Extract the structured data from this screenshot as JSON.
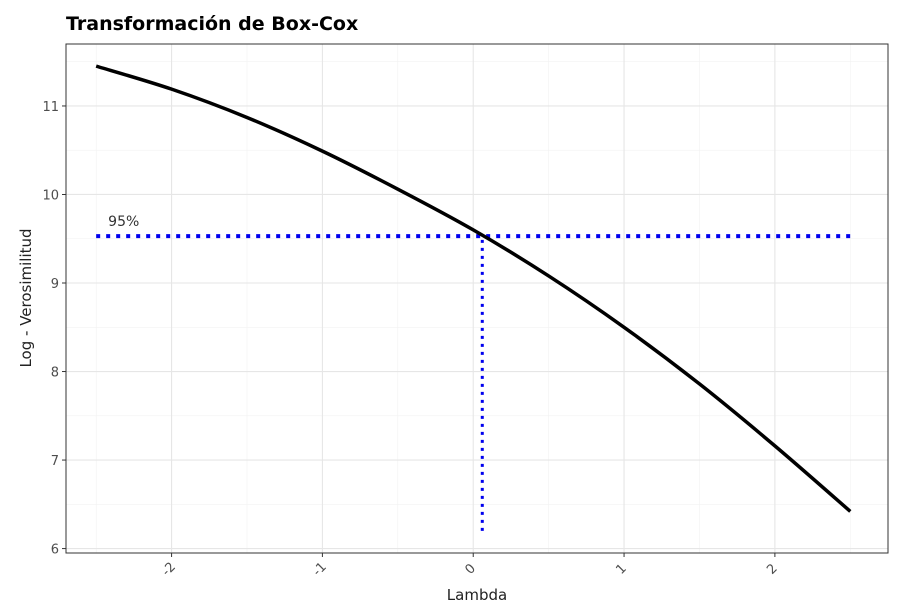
{
  "chart_data": {
    "type": "line",
    "title": "Transformación de Box-Cox",
    "xlabel": "Lambda",
    "ylabel": "Log - Verosimilitud",
    "xlim": [
      -2.7,
      2.75
    ],
    "ylim": [
      5.95,
      11.7
    ],
    "x_ticks": [
      -2,
      -1,
      0,
      1,
      2
    ],
    "x_tick_labels": [
      "-2",
      "-1",
      "0",
      "1",
      "2"
    ],
    "y_ticks": [
      6,
      7,
      8,
      9,
      10,
      11
    ],
    "y_tick_labels": [
      "6",
      "7",
      "8",
      "9",
      "10",
      "11"
    ],
    "grid": true,
    "series": [
      {
        "color": "#000000",
        "x": [
          -2.5,
          -2.0,
          -1.5,
          -1.0,
          -0.5,
          0.0,
          0.5,
          1.0,
          1.5,
          2.0,
          2.5
        ],
        "y": [
          11.45,
          11.19,
          10.87,
          10.49,
          10.06,
          9.6,
          9.08,
          8.5,
          7.86,
          7.16,
          6.42
        ]
      }
    ],
    "ci_line": {
      "y": 9.53,
      "x_start": -2.5,
      "x_end": 2.5,
      "color": "#0000ee",
      "label": "95%"
    },
    "lambda_line": {
      "x": 0.06,
      "y_start": 6.2,
      "y_end": 9.53,
      "color": "#0000ee"
    }
  }
}
